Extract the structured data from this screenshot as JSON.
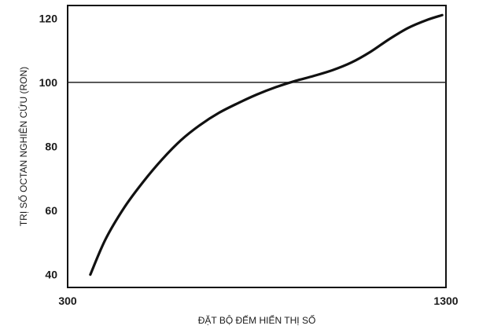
{
  "chart_data": {
    "type": "line",
    "title": "",
    "xlabel": "ĐẶT BỘ ĐẾM HIỂN THỊ SỐ",
    "ylabel": "TRỊ SỐ OCTAN NGHIÊN CỨU (RON)",
    "xlim": [
      300,
      1300
    ],
    "ylim": [
      36,
      124
    ],
    "x_ticks": [
      300,
      1300
    ],
    "x_tick_labels": [
      "300",
      "1300"
    ],
    "y_ticks": [
      40,
      60,
      80,
      100,
      120
    ],
    "y_tick_labels": [
      "40",
      "60",
      "80",
      "100",
      "120"
    ],
    "grid": false,
    "reference_lines": [
      {
        "axis": "y",
        "value": 100
      }
    ],
    "series": [
      {
        "x": [
          360,
          400,
          450,
          500,
          550,
          600,
          650,
          700,
          750,
          800,
          850,
          900,
          950,
          1000,
          1050,
          1100,
          1150,
          1200,
          1250,
          1290
        ],
        "y": [
          40,
          51,
          61,
          69,
          76,
          82,
          86.7,
          90.5,
          93.5,
          96.2,
          98.5,
          100.4,
          102,
          103.8,
          106.2,
          109.5,
          113.5,
          117,
          119.5,
          121
        ]
      }
    ],
    "colors": {
      "line": "#111111",
      "axis": "#111111",
      "reference": "#222222"
    }
  }
}
